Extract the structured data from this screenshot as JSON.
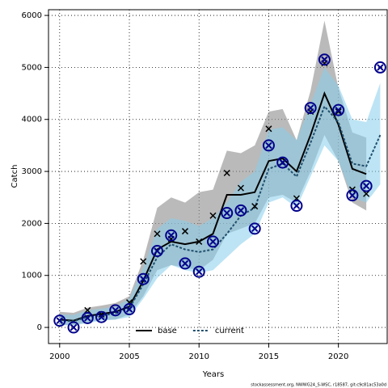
{
  "chart_data": {
    "type": "line",
    "xlabel": "Years",
    "ylabel": "Catch",
    "footnote": "stockassessment.org, NWWG24_S-WSC, r18587, git:c9c81ac53a0d",
    "x": [
      2000,
      2001,
      2002,
      2003,
      2004,
      2005,
      2006,
      2007,
      2008,
      2009,
      2010,
      2011,
      2012,
      2013,
      2014,
      2015,
      2016,
      2017,
      2018,
      2019,
      2020,
      2021,
      2022,
      2023
    ],
    "xlim": [
      1999.2,
      2023.5
    ],
    "ylim": [
      -310,
      6110
    ],
    "xticks": [
      2000,
      2005,
      2010,
      2015,
      2020
    ],
    "yticks": [
      0,
      1000,
      2000,
      3000,
      4000,
      5000,
      6000
    ],
    "grid": true,
    "legend_position": "bottom",
    "series": [
      {
        "name": "base",
        "color": "#000000",
        "dash": false,
        "band_color": "#8c8c8c",
        "point_marker": "x",
        "point_color": "#000000",
        "values": [
          150,
          130,
          220,
          260,
          300,
          400,
          900,
          1500,
          1650,
          1600,
          1650,
          1800,
          2550,
          2550,
          2600,
          3200,
          3250,
          3000,
          3700,
          4500,
          3900,
          3050,
          2950,
          null
        ],
        "lower": [
          50,
          50,
          100,
          150,
          150,
          250,
          600,
          1100,
          1200,
          1150,
          1100,
          1300,
          1800,
          1900,
          2000,
          2500,
          2550,
          2400,
          3000,
          3700,
          3200,
          2400,
          2250,
          null
        ],
        "upper": [
          300,
          280,
          380,
          420,
          470,
          600,
          1300,
          2300,
          2500,
          2400,
          2600,
          2650,
          3400,
          3350,
          3500,
          4150,
          4200,
          3600,
          4550,
          5900,
          4600,
          3750,
          3650,
          null
        ],
        "points": [
          130,
          0,
          330,
          250,
          330,
          480,
          1270,
          1800,
          1700,
          1850,
          1650,
          2150,
          2970,
          2680,
          2330,
          3820,
          3180,
          2480,
          4150,
          5080,
          4150,
          2650,
          2570,
          null
        ]
      },
      {
        "name": "current",
        "color": "#1f4e6e",
        "dash": true,
        "band_color": "#87ceeb",
        "point_marker": "circle-x",
        "point_color": "#00008b",
        "values": [
          130,
          120,
          200,
          230,
          270,
          370,
          830,
          1350,
          1600,
          1500,
          1450,
          1500,
          1800,
          2150,
          2300,
          3050,
          3150,
          2900,
          3550,
          4250,
          3950,
          3150,
          3100,
          3700
        ],
        "lower": [
          40,
          40,
          80,
          130,
          150,
          200,
          550,
          950,
          1200,
          1100,
          1050,
          1100,
          1350,
          1600,
          1800,
          2400,
          2500,
          2300,
          2900,
          3500,
          3200,
          2500,
          2400,
          2750
        ],
        "upper": [
          250,
          240,
          330,
          360,
          400,
          550,
          1150,
          1900,
          2100,
          2050,
          1950,
          2100,
          2400,
          2800,
          3000,
          3800,
          3850,
          3600,
          4300,
          5000,
          4650,
          4000,
          3950,
          4700
        ],
        "points": [
          130,
          0,
          180,
          200,
          330,
          350,
          930,
          1470,
          1770,
          1230,
          1070,
          1650,
          2200,
          2250,
          1900,
          3500,
          3170,
          2340,
          4220,
          5150,
          4180,
          2540,
          2720,
          5000
        ]
      }
    ]
  }
}
